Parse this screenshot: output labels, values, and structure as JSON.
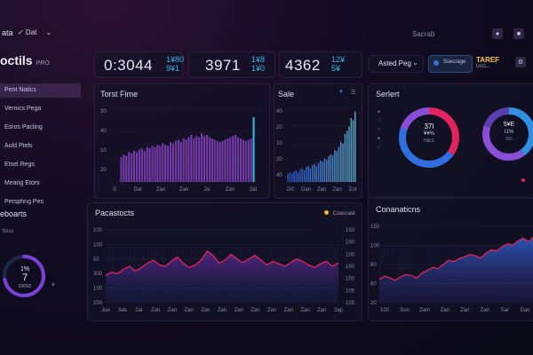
{
  "topbar": {
    "left_label": "ata",
    "date_label": "✓ Dat",
    "chevron": "chevron-down-icon",
    "search_label": "Sacrab"
  },
  "brand": {
    "name": "octils",
    "suffix": "PRO"
  },
  "stats": [
    {
      "value": "0:3044",
      "sub1": "1¥80",
      "sub2": "9¥1"
    },
    {
      "value": "3971",
      "sub1": "1¥8",
      "sub2": "1¥0"
    },
    {
      "value": "4362",
      "sub1": "12¥",
      "sub2": "5¥"
    }
  ],
  "filter": {
    "select_label": "Asted Peg",
    "select_chevron": "chevron-down-icon",
    "button_label": "Ssecrage",
    "brand_tag": "TAREF",
    "brand_sub": "UUG..."
  },
  "sidebar": {
    "items": [
      {
        "label": "Pent Natics"
      },
      {
        "label": "Vernics Pega"
      },
      {
        "label": "Esros Pacling"
      },
      {
        "label": "Auld Ptels"
      },
      {
        "label": "Etsel Regs"
      },
      {
        "label": "Mearig Etors"
      },
      {
        "label": "Persphng Pes"
      }
    ],
    "reports_title": "eboarts",
    "reports_sub": "Soss",
    "gauge": {
      "line1": "1%",
      "line2": "7",
      "line3": "DRSD",
      "marker": "a",
      "level": 0.72
    }
  },
  "panels": {
    "traffic": {
      "title": "Torst Fime",
      "y_ticks": [
        "30",
        "40",
        "10",
        "20"
      ],
      "x_ticks": [
        "S",
        "Dal",
        "Zan",
        "Zan",
        "2e",
        "Zan",
        "2at"
      ]
    },
    "sales": {
      "title": "Sale",
      "y_ticks": [
        "40",
        "20",
        "10",
        "20",
        "40"
      ],
      "x_ticks": [
        "D0",
        "Dan",
        "Zan",
        "Zan",
        "Zot"
      ]
    },
    "segment": {
      "title": "Serlert",
      "donut1": {
        "line1": "37I",
        "line2": "¥¥%",
        "line3": "INES"
      },
      "donut2": {
        "line1": "5¥E",
        "line2": "I1%",
        "line3": "5%"
      }
    },
    "forecast": {
      "title": "Pacastocts",
      "legend": "Coeccast",
      "y_left": [
        "100",
        "100",
        "50",
        "300",
        "100",
        "200"
      ],
      "y_right": [
        "150",
        "100",
        "100",
        "100",
        "100",
        "105",
        "105"
      ],
      "x_ticks": [
        "Joe",
        "3ab",
        "2al",
        "Zan",
        "Zan",
        "Zan",
        "Zan",
        "Zan",
        "Zan",
        "Zan",
        "Zan",
        "Zan",
        "Zan",
        "Zan",
        "2ap"
      ]
    },
    "connections": {
      "title": "Conanaticns",
      "y_ticks": [
        "150",
        "100",
        "60",
        "60",
        "20"
      ],
      "x_ticks": [
        "100",
        "Son",
        "Zam",
        "Zan",
        "Zan",
        "Zan",
        "Sar",
        "Dan"
      ]
    }
  },
  "colors": {
    "accent_cyan": "#38b6e6",
    "accent_magenta": "#e0245e",
    "accent_purple": "#8a4fd8",
    "accent_blue": "#2f6fe0",
    "legend_dot": "#f5b82e"
  },
  "chart_data": [
    {
      "type": "bar",
      "title": "Torst Fime",
      "values": [
        20,
        22,
        21,
        24,
        23,
        25,
        24,
        26,
        27,
        25,
        28,
        27,
        29,
        28,
        30,
        29,
        31,
        30,
        29,
        32,
        31,
        33,
        34,
        32,
        35,
        34,
        36,
        38,
        35,
        37,
        36,
        39,
        37,
        38,
        36,
        35,
        34,
        33,
        32,
        33,
        34,
        35,
        36,
        37,
        38,
        36,
        35,
        34,
        33,
        34,
        35,
        52
      ],
      "ylim": [
        0,
        60
      ]
    },
    {
      "type": "bar",
      "title": "Sale",
      "values": [
        8,
        9,
        8,
        10,
        11,
        9,
        12,
        13,
        11,
        14,
        15,
        13,
        16,
        17,
        15,
        18,
        20,
        19,
        22,
        21,
        24,
        26,
        25,
        30,
        29,
        33,
        38,
        36,
        45,
        48,
        52,
        60,
        58,
        66
      ],
      "ylim": [
        0,
        70
      ]
    },
    {
      "type": "area",
      "title": "Pacastocts",
      "values": [
        45,
        50,
        48,
        55,
        60,
        52,
        58,
        65,
        70,
        62,
        60,
        68,
        75,
        65,
        58,
        62,
        70,
        85,
        78,
        65,
        70,
        80,
        72,
        66,
        72,
        78,
        70,
        62,
        68,
        64,
        60,
        66,
        72,
        68,
        62,
        58,
        64,
        68,
        60,
        66
      ],
      "ylim": [
        0,
        120
      ]
    },
    {
      "type": "area",
      "title": "Conanaticns",
      "values": [
        40,
        45,
        42,
        38,
        44,
        48,
        46,
        42,
        50,
        55,
        60,
        58,
        65,
        72,
        70,
        75,
        78,
        82,
        80,
        76,
        84,
        90,
        88,
        95,
        100,
        98,
        105,
        110,
        104,
        112
      ],
      "ylim": [
        0,
        130
      ]
    },
    {
      "type": "pie",
      "title": "Serlert",
      "slices": [
        {
          "value": 35,
          "color": "#e0245e"
        },
        {
          "value": 45,
          "color": "#2f6fe0"
        },
        {
          "value": 20,
          "color": "#8a4fd8"
        }
      ]
    },
    {
      "type": "pie",
      "title": "Serlert",
      "slices": [
        {
          "value": 40,
          "color": "#2f8fe0"
        },
        {
          "value": 40,
          "color": "#8a4fd8"
        },
        {
          "value": 20,
          "color": "#5a3fb0"
        }
      ]
    }
  ]
}
